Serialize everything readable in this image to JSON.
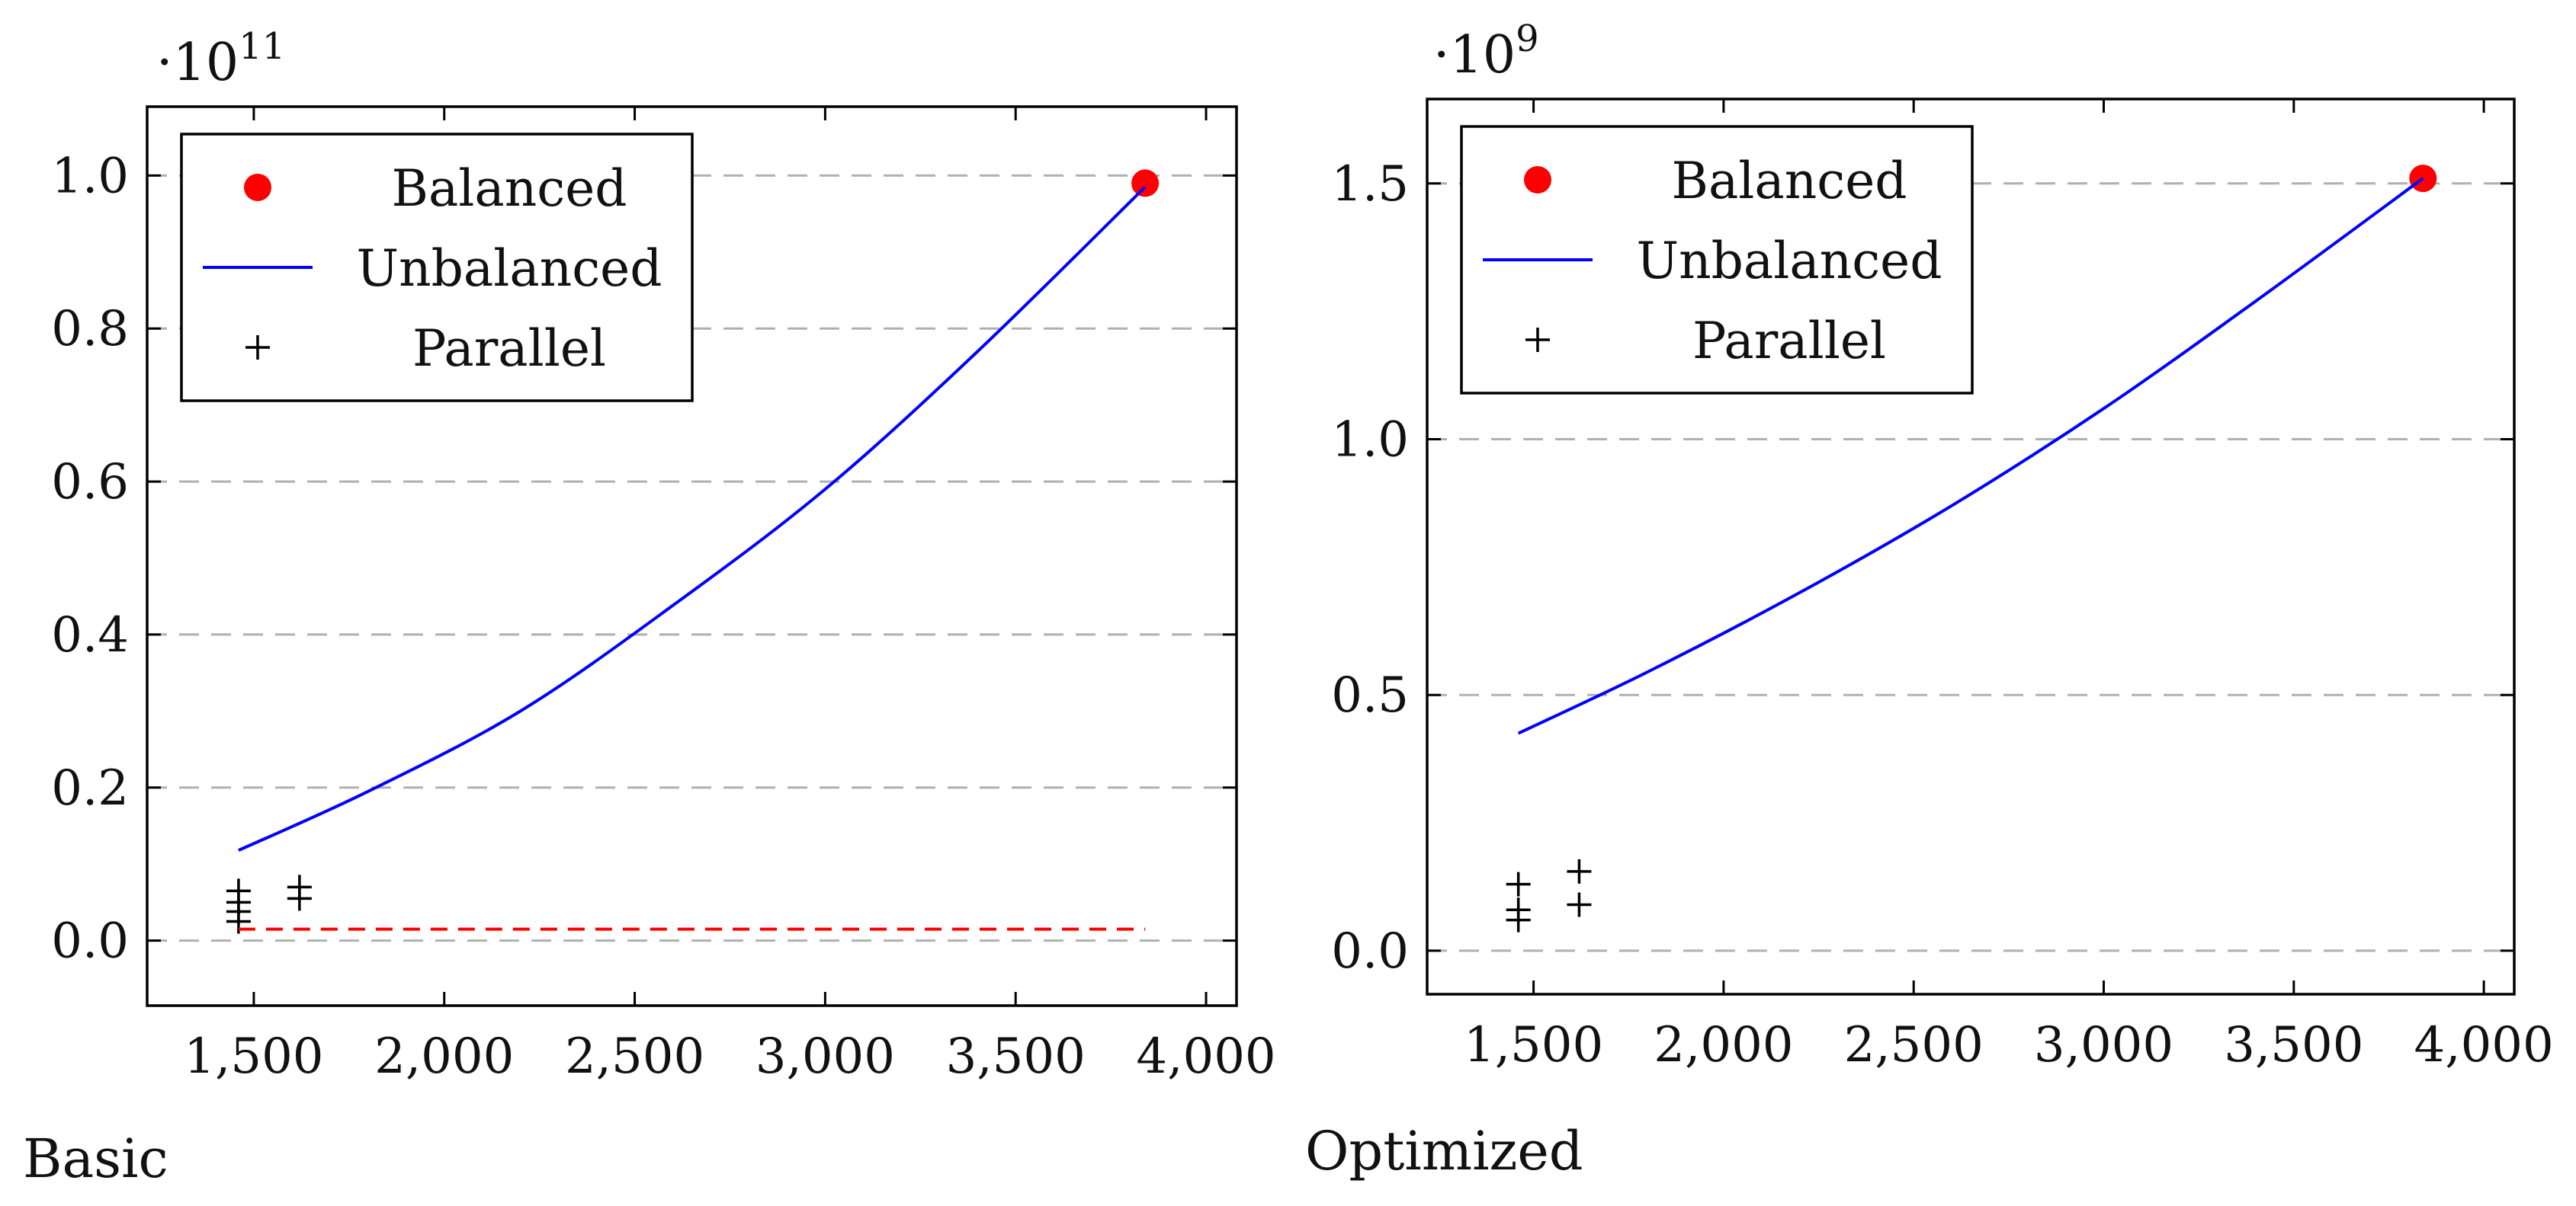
{
  "chart_data": [
    {
      "type": "line",
      "caption": "Basic",
      "y_scale_label": {
        "base": "·10",
        "exponent": "11"
      },
      "xlim": [
        1220,
        4080
      ],
      "ylim": [
        -0.085,
        1.09
      ],
      "x_ticks": [
        1500,
        2000,
        2500,
        3000,
        3500,
        4000
      ],
      "x_tick_labels": [
        "1,500",
        "2,000",
        "2,500",
        "3,000",
        "3,500",
        "4,000"
      ],
      "y_ticks": [
        0.0,
        0.2,
        0.4,
        0.6,
        0.8,
        1.0
      ],
      "y_tick_labels": [
        "0.0",
        "0.2",
        "0.4",
        "0.6",
        "0.8",
        "1.0"
      ],
      "grid": "horizontal dashed",
      "legend_position": "top-left",
      "series": [
        {
          "name": "Balanced",
          "kind": "marker-circle",
          "color": "#ff0000",
          "points": [
            [
              3840,
              0.99
            ]
          ]
        },
        {
          "name": "Unbalanced",
          "kind": "line",
          "color": "#0000ff",
          "points": [
            [
              1460,
              0.118
            ],
            [
              1800,
              0.195
            ],
            [
              2200,
              0.3
            ],
            [
              2600,
              0.438
            ],
            [
              3000,
              0.59
            ],
            [
              3400,
              0.77
            ],
            [
              3840,
              0.985
            ]
          ]
        },
        {
          "name": "Parallel",
          "kind": "marker-plus",
          "color": "#000000",
          "points": [
            [
              1460,
              0.025
            ],
            [
              1460,
              0.038
            ],
            [
              1460,
              0.05
            ],
            [
              1460,
              0.065
            ],
            [
              1620,
              0.055
            ],
            [
              1620,
              0.07
            ]
          ]
        },
        {
          "name": "",
          "kind": "dashed-line",
          "color": "#ff0000",
          "points": [
            [
              1460,
              0.015
            ],
            [
              3840,
              0.015
            ]
          ]
        }
      ],
      "legend": [
        "Balanced",
        "Unbalanced",
        "Parallel"
      ]
    },
    {
      "type": "line",
      "caption": "Optimized",
      "y_scale_label": {
        "base": "·10",
        "exponent": "9"
      },
      "xlim": [
        1220,
        4080
      ],
      "ylim": [
        -0.085,
        1.665
      ],
      "x_ticks": [
        1500,
        2000,
        2500,
        3000,
        3500,
        4000
      ],
      "x_tick_labels": [
        "1,500",
        "2,000",
        "2,500",
        "3,000",
        "3,500",
        "4,000"
      ],
      "y_ticks": [
        0.0,
        0.5,
        1.0,
        1.5
      ],
      "y_tick_labels": [
        "0.0",
        "0.5",
        "1.0",
        "1.5"
      ],
      "grid": "horizontal dashed",
      "legend_position": "top-left",
      "series": [
        {
          "name": "Balanced",
          "kind": "marker-circle",
          "color": "#ff0000",
          "points": [
            [
              3840,
              1.51
            ]
          ]
        },
        {
          "name": "Unbalanced",
          "kind": "line",
          "color": "#0000ff",
          "points": [
            [
              1460,
              0.425
            ],
            [
              1800,
              0.545
            ],
            [
              2200,
              0.7
            ],
            [
              2600,
              0.87
            ],
            [
              3000,
              1.06
            ],
            [
              3400,
              1.27
            ],
            [
              3840,
              1.51
            ]
          ]
        },
        {
          "name": "Parallel",
          "kind": "marker-plus",
          "color": "#000000",
          "points": [
            [
              1460,
              0.06
            ],
            [
              1460,
              0.08
            ],
            [
              1460,
              0.13
            ],
            [
              1620,
              0.09
            ],
            [
              1620,
              0.155
            ]
          ]
        }
      ],
      "legend": [
        "Balanced",
        "Unbalanced",
        "Parallel"
      ]
    }
  ]
}
